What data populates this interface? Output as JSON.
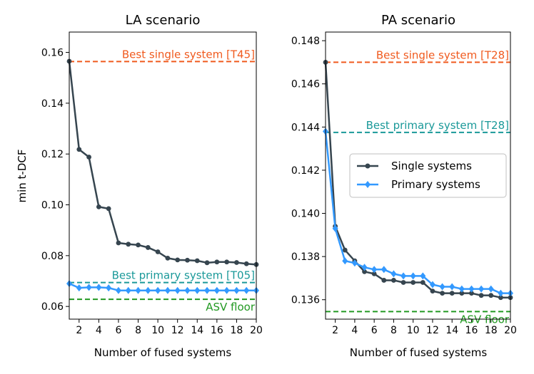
{
  "chart_data": [
    {
      "type": "line",
      "title": "LA scenario",
      "xlabel": "Number of fused systems",
      "ylabel": "min t-DCF",
      "xlim": [
        1,
        20
      ],
      "ylim": [
        0.055,
        0.168
      ],
      "xticks": [
        2,
        4,
        6,
        8,
        10,
        12,
        14,
        16,
        18,
        20
      ],
      "yticks": [
        0.06,
        0.08,
        0.1,
        0.12,
        0.14,
        0.16
      ],
      "ytick_labels": [
        "0.06",
        "0.08",
        "0.10",
        "0.12",
        "0.14",
        "0.16"
      ],
      "x": [
        1,
        2,
        3,
        4,
        5,
        6,
        7,
        8,
        9,
        10,
        11,
        12,
        13,
        14,
        15,
        16,
        17,
        18,
        19,
        20
      ],
      "series": [
        {
          "name": "Single systems",
          "color": "#36454f",
          "marker": "circle",
          "values": [
            0.1565,
            0.1218,
            0.1188,
            0.0992,
            0.0985,
            0.085,
            0.0845,
            0.0842,
            0.0832,
            0.0815,
            0.079,
            0.0783,
            0.0782,
            0.078,
            0.0772,
            0.0775,
            0.0775,
            0.0773,
            0.0768,
            0.0765
          ]
        },
        {
          "name": "Primary systems",
          "color": "#3399ff",
          "marker": "diamond",
          "values": [
            0.069,
            0.0673,
            0.0675,
            0.0675,
            0.0673,
            0.0663,
            0.0663,
            0.0663,
            0.0663,
            0.0663,
            0.0663,
            0.0663,
            0.0663,
            0.0663,
            0.0663,
            0.0663,
            0.0663,
            0.0663,
            0.0663,
            0.0663
          ]
        }
      ],
      "reference_lines": [
        {
          "label": "Best single system [T45]",
          "value": 0.1564,
          "color": "#f05a1e"
        },
        {
          "label": "Best primary system [T05]",
          "value": 0.0694,
          "color": "#1a9999"
        },
        {
          "label": "ASV floor",
          "value": 0.0628,
          "color": "#229922"
        }
      ]
    },
    {
      "type": "line",
      "title": "PA scenario",
      "xlabel": "Number of fused systems",
      "ylabel": "",
      "xlim": [
        1,
        20
      ],
      "ylim": [
        0.1351,
        0.1484
      ],
      "xticks": [
        2,
        4,
        6,
        8,
        10,
        12,
        14,
        16,
        18,
        20
      ],
      "yticks": [
        0.136,
        0.138,
        0.14,
        0.142,
        0.144,
        0.146,
        0.148
      ],
      "ytick_labels": [
        "0.136",
        "0.138",
        "0.140",
        "0.142",
        "0.144",
        "0.146",
        "0.148"
      ],
      "x": [
        1,
        2,
        3,
        4,
        5,
        6,
        7,
        8,
        9,
        10,
        11,
        12,
        13,
        14,
        15,
        16,
        17,
        18,
        19,
        20
      ],
      "series": [
        {
          "name": "Single systems",
          "color": "#36454f",
          "marker": "circle",
          "values": [
            0.147,
            0.1394,
            0.1383,
            0.1378,
            0.1373,
            0.1372,
            0.1369,
            0.1369,
            0.1368,
            0.1368,
            0.1368,
            0.1364,
            0.1363,
            0.1363,
            0.1363,
            0.1363,
            0.1362,
            0.1362,
            0.1361,
            0.1361
          ]
        },
        {
          "name": "Primary systems",
          "color": "#3399ff",
          "marker": "diamond",
          "values": [
            0.1438,
            0.1393,
            0.1378,
            0.1377,
            0.1375,
            0.1374,
            0.1374,
            0.1372,
            0.1371,
            0.1371,
            0.1371,
            0.1367,
            0.1366,
            0.1366,
            0.1365,
            0.1365,
            0.1365,
            0.1365,
            0.1363,
            0.1363
          ]
        }
      ],
      "reference_lines": [
        {
          "label": "Best single system [T28]",
          "value": 0.147,
          "color": "#f05a1e"
        },
        {
          "label": "Best primary system [T28]",
          "value": 0.14375,
          "color": "#1a9999"
        },
        {
          "label": "ASV floor",
          "value": 0.13545,
          "color": "#229922"
        }
      ],
      "legend": {
        "position": "center-right",
        "entries": [
          "Single systems",
          "Primary systems"
        ]
      }
    }
  ]
}
